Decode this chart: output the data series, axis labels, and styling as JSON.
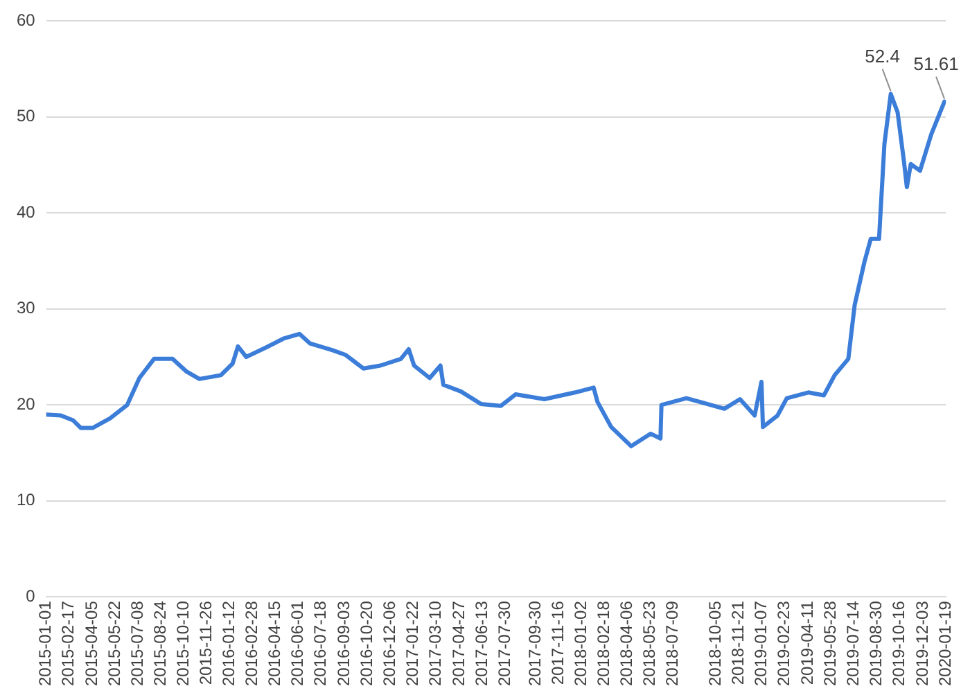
{
  "chart_data": {
    "type": "line",
    "color": "#3b7dd8",
    "grid": "y",
    "legend": false,
    "marker": "none",
    "line_style": "solid",
    "x": [
      "2015-01-01",
      "2015-01-31",
      "2015-02-25",
      "2015-03-13",
      "2015-04-06",
      "2015-05-12",
      "2015-06-16",
      "2015-07-11",
      "2015-08-10",
      "2015-09-17",
      "2015-10-15",
      "2015-11-11",
      "2015-12-25",
      "2016-01-18",
      "2016-01-29",
      "2016-02-15",
      "2016-03-27",
      "2016-05-01",
      "2016-06-03",
      "2016-06-25",
      "2016-08-10",
      "2016-09-06",
      "2016-10-12",
      "2016-11-16",
      "2016-12-28",
      "2017-01-13",
      "2017-01-24",
      "2017-02-25",
      "2017-03-19",
      "2017-03-25",
      "2017-04-30",
      "2017-06-10",
      "2017-07-21",
      "2017-08-20",
      "2017-10-18",
      "2017-12-20",
      "2018-01-27",
      "2018-02-04",
      "2018-03-04",
      "2018-04-14",
      "2018-05-24",
      "2018-06-13",
      "2018-06-15",
      "2018-08-05",
      "2018-10-22",
      "2018-11-23",
      "2018-12-23",
      "2019-01-06",
      "2019-01-09",
      "2019-02-08",
      "2019-02-27",
      "2019-04-12",
      "2019-05-14",
      "2019-06-05",
      "2019-07-03",
      "2019-07-16",
      "2019-08-05",
      "2019-08-18",
      "2019-09-04",
      "2019-09-15",
      "2019-09-28",
      "2019-10-12",
      "2019-10-25",
      "2019-10-31",
      "2019-11-08",
      "2019-11-27",
      "2019-12-20",
      "2020-01-16"
    ],
    "values": [
      19.0,
      18.9,
      18.4,
      17.6,
      17.6,
      18.6,
      20.0,
      22.8,
      24.8,
      24.8,
      23.5,
      22.7,
      23.1,
      24.3,
      26.1,
      25.0,
      26.0,
      26.9,
      27.4,
      26.4,
      25.7,
      25.2,
      23.8,
      24.1,
      24.8,
      25.8,
      24.1,
      22.8,
      24.1,
      22.1,
      21.4,
      20.1,
      19.9,
      21.1,
      20.6,
      21.3,
      21.8,
      20.3,
      17.7,
      15.7,
      17.0,
      16.5,
      20.0,
      20.7,
      19.6,
      20.6,
      18.9,
      22.4,
      17.7,
      18.9,
      20.7,
      21.3,
      21.0,
      23.1,
      24.8,
      30.4,
      34.9,
      37.3,
      37.3,
      47.2,
      52.4,
      50.5,
      45.4,
      42.7,
      45.1,
      44.4,
      48.2,
      51.61
    ],
    "ylim": [
      0,
      60
    ],
    "yticks": [
      0,
      10,
      20,
      30,
      40,
      50,
      60
    ],
    "xlim": [
      "2015-01-01",
      "2020-01-19"
    ],
    "xticks": [
      "2015-01-01",
      "2015-02-17",
      "2015-04-05",
      "2015-05-22",
      "2015-07-08",
      "2015-08-24",
      "2015-10-10",
      "2015-11-26",
      "2016-01-12",
      "2016-02-28",
      "2016-04-15",
      "2016-06-01",
      "2016-07-18",
      "2016-09-03",
      "2016-10-20",
      "2016-12-06",
      "2017-01-22",
      "2017-03-10",
      "2017-04-27",
      "2017-06-13",
      "2017-07-30",
      "2017-09-30",
      "2017-11-16",
      "2018-01-02",
      "2018-02-18",
      "2018-04-06",
      "2018-05-23",
      "2018-07-09",
      "2018-10-05",
      "2018-11-21",
      "2019-01-07",
      "2019-02-23",
      "2019-04-11",
      "2019-05-28",
      "2019-07-14",
      "2019-08-30",
      "2019-10-16",
      "2019-12-03",
      "2020-01-19"
    ],
    "annotations": [
      {
        "text": "52.4",
        "x": "2019-09-28",
        "y": 52.4
      },
      {
        "text": "51.61",
        "x": "2020-01-16",
        "y": 51.61
      }
    ]
  }
}
